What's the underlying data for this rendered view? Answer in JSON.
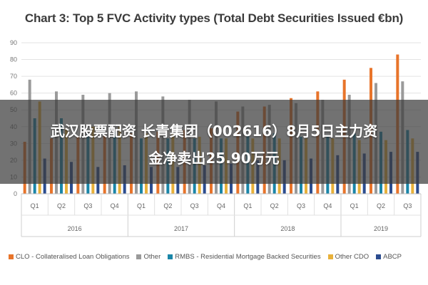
{
  "chart_data": {
    "type": "bar",
    "title": "Chart 3: Top 5 FVC Activity types (Total Debt Securities Issued €bn)",
    "ylim": [
      0,
      90
    ],
    "yticks": [
      0,
      10,
      20,
      30,
      40,
      50,
      60,
      70,
      80,
      90
    ],
    "categories": [
      "Q1",
      "Q2",
      "Q3",
      "Q4",
      "Q1",
      "Q2",
      "Q3",
      "Q4",
      "Q1",
      "Q2",
      "Q3",
      "Q4",
      "Q1",
      "Q2",
      "Q3"
    ],
    "years": [
      {
        "label": "2016",
        "count": 4
      },
      {
        "label": "2017",
        "count": 4
      },
      {
        "label": "2018",
        "count": 4
      },
      {
        "label": "2019",
        "count": 3
      }
    ],
    "grid": true,
    "legend_position": "bottom",
    "series": [
      {
        "name": "CLO - Collateralised Loan Obligations",
        "color": "#e8742a",
        "values": [
          31,
          33,
          34,
          35,
          36,
          37,
          38,
          39,
          49,
          52,
          57,
          61,
          68,
          75,
          83
        ]
      },
      {
        "name": "Other",
        "color": "#9a9a9a",
        "values": [
          68,
          61,
          59,
          60,
          61,
          58,
          56,
          55,
          52,
          53,
          54,
          56,
          59,
          66,
          67
        ]
      },
      {
        "name": "RMBS - Residential Mortgage Backed Securities",
        "color": "#1a86a8",
        "values": [
          45,
          45,
          36,
          37,
          33,
          33,
          33,
          33,
          35,
          36,
          34,
          35,
          36,
          37,
          38
        ]
      },
      {
        "name": "Other CDO",
        "color": "#e8b13a",
        "values": [
          55,
          39,
          40,
          40,
          36,
          36,
          34,
          33,
          33,
          33,
          33,
          33,
          32,
          32,
          33
        ]
      },
      {
        "name": "ABCP",
        "color": "#2b4c8f",
        "values": [
          21,
          19,
          16,
          17,
          16,
          16,
          17,
          18,
          20,
          20,
          21,
          23,
          24,
          25,
          25
        ]
      }
    ]
  },
  "overlay": {
    "line1": "武汉股票配资 长青集团（002616）8月5日主力资",
    "line2": "金净卖出25.90万元"
  }
}
